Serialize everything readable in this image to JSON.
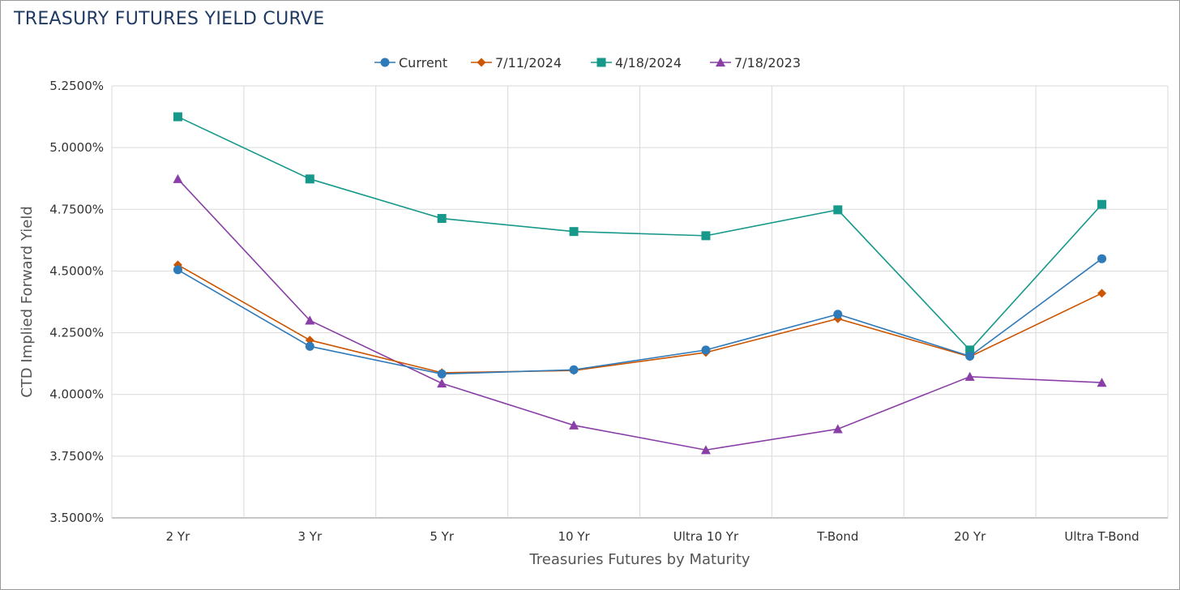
{
  "title": "TREASURY FUTURES YIELD CURVE",
  "chart_data": {
    "type": "line",
    "title": "TREASURY FUTURES YIELD CURVE",
    "xlabel": "Treasuries Futures by Maturity",
    "ylabel": "CTD Implied Forward Yield",
    "categories": [
      "2 Yr",
      "3 Yr",
      "5 Yr",
      "10 Yr",
      "Ultra 10 Yr",
      "T-Bond",
      "20 Yr",
      "Ultra T-Bond"
    ],
    "ylim": [
      3.5,
      5.25
    ],
    "yticks": [
      3.5,
      3.75,
      4.0,
      4.25,
      4.5,
      4.75,
      5.0,
      5.25
    ],
    "ytick_labels": [
      "3.5000%",
      "3.7500%",
      "4.0000%",
      "4.2500%",
      "4.5000%",
      "4.7500%",
      "5.0000%",
      "5.2500%"
    ],
    "grid": true,
    "legend_position": "top-center",
    "series": [
      {
        "name": "Current",
        "color": "#2f7ab8",
        "marker": "circle",
        "values": [
          4.505,
          4.195,
          4.083,
          4.1,
          4.18,
          4.325,
          4.155,
          4.55
        ]
      },
      {
        "name": "7/11/2024",
        "color": "#cc5500",
        "marker": "diamond",
        "values": [
          4.525,
          4.22,
          4.088,
          4.097,
          4.17,
          4.307,
          4.153,
          4.41
        ]
      },
      {
        "name": "4/18/2024",
        "color": "#16998a",
        "marker": "square",
        "values": [
          5.125,
          4.873,
          4.713,
          4.66,
          4.643,
          4.748,
          4.18,
          4.77
        ]
      },
      {
        "name": "7/18/2023",
        "color": "#8a3fa6",
        "marker": "triangle",
        "values": [
          4.873,
          4.3,
          4.045,
          3.875,
          3.775,
          3.86,
          4.072,
          4.048
        ]
      }
    ]
  }
}
